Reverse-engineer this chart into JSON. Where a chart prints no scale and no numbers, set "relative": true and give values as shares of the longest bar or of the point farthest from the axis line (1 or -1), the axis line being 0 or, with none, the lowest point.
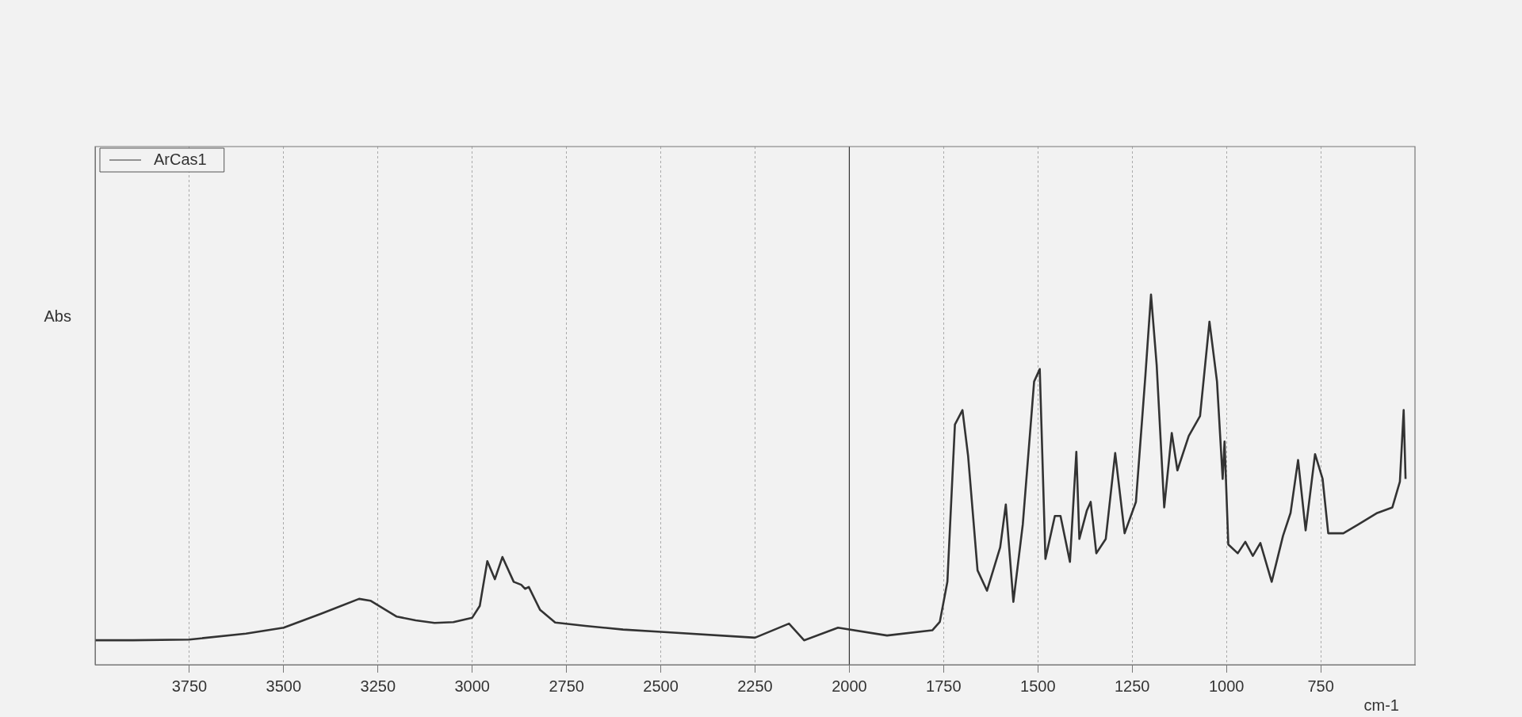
{
  "chart_data": {
    "type": "line",
    "xlabel": "cm-1",
    "ylabel": "Abs",
    "relative": true,
    "xlim": [
      4000,
      500
    ],
    "xticks": [
      3750,
      3500,
      3250,
      3000,
      2750,
      2500,
      2250,
      2000,
      1750,
      1500,
      1250,
      1000,
      750
    ],
    "grid": "x",
    "legend": "top left",
    "marker": "none",
    "line_style": "solid",
    "ref_lines": [
      {
        "axis": "x",
        "value": 2000,
        "color": "#333333"
      }
    ],
    "series": [
      {
        "name": "ArCas1",
        "color": "#333333",
        "x": [
          4000,
          3900,
          3750,
          3600,
          3500,
          3400,
          3300,
          3270,
          3200,
          3150,
          3100,
          3050,
          3000,
          2980,
          2960,
          2940,
          2920,
          2890,
          2870,
          2860,
          2850,
          2820,
          2780,
          2700,
          2600,
          2500,
          2250,
          2160,
          2120,
          2030,
          1900,
          1780,
          1760,
          1740,
          1720,
          1700,
          1685,
          1660,
          1635,
          1600,
          1585,
          1565,
          1540,
          1510,
          1495,
          1480,
          1455,
          1440,
          1415,
          1398,
          1390,
          1370,
          1360,
          1345,
          1320,
          1295,
          1270,
          1240,
          1215,
          1200,
          1185,
          1165,
          1145,
          1130,
          1100,
          1070,
          1045,
          1025,
          1010,
          1005,
          995,
          970,
          950,
          930,
          910,
          880,
          850,
          830,
          810,
          790,
          765,
          745,
          730,
          690,
          650,
          600,
          560,
          540,
          530,
          525
        ],
        "values": [
          0.066,
          0.066,
          0.068,
          0.084,
          0.1,
          0.138,
          0.178,
          0.173,
          0.13,
          0.12,
          0.113,
          0.115,
          0.127,
          0.159,
          0.28,
          0.231,
          0.291,
          0.224,
          0.216,
          0.205,
          0.21,
          0.148,
          0.114,
          0.105,
          0.095,
          0.089,
          0.073,
          0.111,
          0.066,
          0.1,
          0.079,
          0.093,
          0.116,
          0.224,
          0.649,
          0.688,
          0.564,
          0.255,
          0.2,
          0.317,
          0.433,
          0.17,
          0.379,
          0.765,
          0.799,
          0.286,
          0.402,
          0.402,
          0.278,
          0.575,
          0.34,
          0.417,
          0.44,
          0.301,
          0.34,
          0.572,
          0.355,
          0.44,
          0.78,
          1.0,
          0.81,
          0.425,
          0.626,
          0.525,
          0.618,
          0.672,
          0.927,
          0.765,
          0.502,
          0.603,
          0.325,
          0.301,
          0.332,
          0.294,
          0.329,
          0.224,
          0.348,
          0.41,
          0.553,
          0.363,
          0.569,
          0.502,
          0.355,
          0.355,
          0.379,
          0.41,
          0.425,
          0.495,
          0.688,
          0.502
        ]
      }
    ]
  }
}
